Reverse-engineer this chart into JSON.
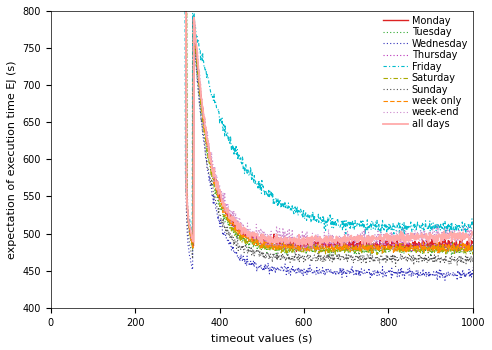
{
  "title": "",
  "xlabel": "timeout values (s)",
  "ylabel": "expectation of execution time EJ (s)",
  "xlim": [
    0,
    1000
  ],
  "ylim": [
    400,
    800
  ],
  "yticks": [
    400,
    450,
    500,
    550,
    600,
    650,
    700,
    750,
    800
  ],
  "xticks": [
    0,
    200,
    400,
    600,
    800,
    1000
  ],
  "series": [
    {
      "label": "Monday",
      "color": "#dd2222",
      "lw": 1.0,
      "dashes": null,
      "plateau": 485,
      "noise": 3
    },
    {
      "label": "Tuesday",
      "color": "#33aa33",
      "lw": 0.8,
      "dashes": [
        1,
        2
      ],
      "plateau": 478,
      "noise": 3
    },
    {
      "label": "Wednesday",
      "color": "#3333bb",
      "lw": 0.8,
      "dashes": [
        1,
        2
      ],
      "plateau": 450,
      "noise": 3
    },
    {
      "label": "Thursday",
      "color": "#bb33bb",
      "lw": 0.8,
      "dashes": [
        1,
        2
      ],
      "plateau": 483,
      "noise": 3
    },
    {
      "label": "Friday",
      "color": "#00bbcc",
      "lw": 0.8,
      "dashes": [
        3,
        2,
        1,
        2
      ],
      "plateau": 505,
      "noise": 4
    },
    {
      "label": "Saturday",
      "color": "#aaaa00",
      "lw": 0.8,
      "dashes": [
        4,
        2,
        1,
        2
      ],
      "plateau": 479,
      "noise": 3
    },
    {
      "label": "Sunday",
      "color": "#555555",
      "lw": 0.8,
      "dashes": [
        1,
        2,
        1,
        2
      ],
      "plateau": 468,
      "noise": 3
    },
    {
      "label": "week only",
      "color": "#ff8800",
      "lw": 0.8,
      "dashes": [
        4,
        2
      ],
      "plateau": 481,
      "noise": 3
    },
    {
      "label": "week-end",
      "color": "#cc88cc",
      "lw": 0.8,
      "dashes": [
        1,
        2
      ],
      "plateau": 490,
      "noise": 4
    },
    {
      "label": "all days",
      "color": "#ffaaaa",
      "lw": 1.3,
      "dashes": null,
      "plateau": 488,
      "noise": 3
    }
  ],
  "background_color": "#ffffff",
  "legend_fontsize": 7,
  "axis_fontsize": 8,
  "tick_fontsize": 7
}
